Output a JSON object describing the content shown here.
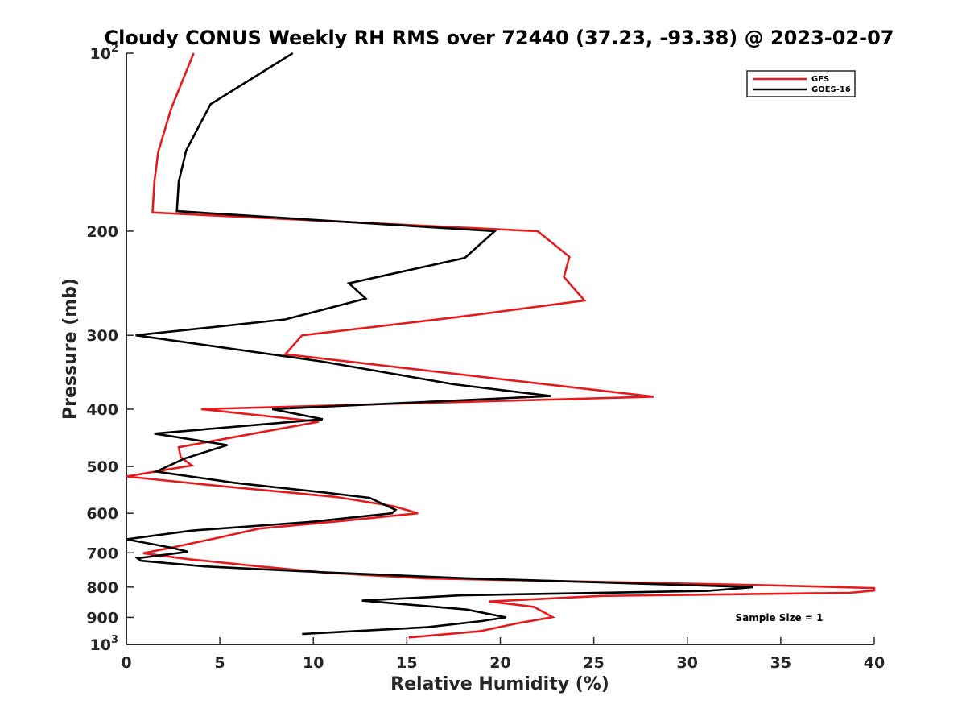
{
  "chart_data": {
    "type": "line",
    "title": "Cloudy CONUS Weekly RH RMS over 72440 (37.23, -93.38) @ 2023-02-07",
    "xlabel": "Relative Humidity (%)",
    "ylabel": "Pressure (mb)",
    "xlim": [
      0,
      40
    ],
    "ylim": [
      100,
      1000
    ],
    "y_scale": "log",
    "y_reversed": true,
    "x_ticks": [
      "0",
      "5",
      "10",
      "15",
      "20",
      "25",
      "30",
      "35",
      "40"
    ],
    "y_ticks": [
      {
        "value": 100,
        "label": "10",
        "exp": "2"
      },
      {
        "value": 200,
        "label": "200",
        "exp": ""
      },
      {
        "value": 300,
        "label": "300",
        "exp": ""
      },
      {
        "value": 400,
        "label": "400",
        "exp": ""
      },
      {
        "value": 500,
        "label": "500",
        "exp": ""
      },
      {
        "value": 600,
        "label": "600",
        "exp": ""
      },
      {
        "value": 700,
        "label": "700",
        "exp": ""
      },
      {
        "value": 800,
        "label": "800",
        "exp": ""
      },
      {
        "value": 900,
        "label": "900",
        "exp": ""
      },
      {
        "value": 1000,
        "label": "10",
        "exp": "3"
      }
    ],
    "grid": false,
    "legend_position": "top-right",
    "annotation": "Sample Size = 1",
    "series": [
      {
        "name": "GFS",
        "color": "#e41a1c",
        "points": [
          [
            3.6,
            100
          ],
          [
            2.4,
            124
          ],
          [
            1.7,
            147
          ],
          [
            1.5,
            165
          ],
          [
            1.4,
            186
          ],
          [
            22.0,
            200
          ],
          [
            23.7,
            221
          ],
          [
            23.4,
            239
          ],
          [
            24.5,
            262
          ],
          [
            17.9,
            279
          ],
          [
            9.4,
            300
          ],
          [
            8.5,
            323
          ],
          [
            28.2,
            381
          ],
          [
            4.0,
            400
          ],
          [
            10.3,
            420
          ],
          [
            2.8,
            464
          ],
          [
            2.9,
            482
          ],
          [
            3.5,
            498
          ],
          [
            0.0,
            520
          ],
          [
            5.1,
            540
          ],
          [
            11.2,
            563
          ],
          [
            14.3,
            584
          ],
          [
            15.6,
            600
          ],
          [
            11.6,
            618
          ],
          [
            7.1,
            637
          ],
          [
            5.0,
            659
          ],
          [
            2.5,
            685
          ],
          [
            0.9,
            701
          ],
          [
            3.4,
            718
          ],
          [
            6.9,
            737
          ],
          [
            10.6,
            756
          ],
          [
            15.9,
            773
          ],
          [
            34.9,
            795
          ],
          [
            40.0,
            803
          ],
          [
            40.0,
            811
          ],
          [
            38.7,
            818
          ],
          [
            25.4,
            828
          ],
          [
            19.4,
            846
          ],
          [
            21.8,
            864
          ],
          [
            22.8,
            899
          ],
          [
            20.9,
            921
          ],
          [
            18.9,
            950
          ],
          [
            15.1,
            973
          ]
        ]
      },
      {
        "name": "GOES-16",
        "color": "#000000",
        "points": [
          [
            8.9,
            100
          ],
          [
            4.5,
            122
          ],
          [
            3.2,
            146
          ],
          [
            2.8,
            165
          ],
          [
            2.7,
            185
          ],
          [
            19.7,
            200
          ],
          [
            18.1,
            222
          ],
          [
            11.9,
            245
          ],
          [
            12.8,
            260
          ],
          [
            8.5,
            282
          ],
          [
            0.5,
            300
          ],
          [
            10.4,
            332
          ],
          [
            17.5,
            363
          ],
          [
            22.7,
            380
          ],
          [
            7.8,
            400
          ],
          [
            10.5,
            416
          ],
          [
            1.5,
            440
          ],
          [
            5.4,
            460
          ],
          [
            3.1,
            485
          ],
          [
            1.6,
            510
          ],
          [
            5.8,
            533
          ],
          [
            10.5,
            553
          ],
          [
            13.0,
            565
          ],
          [
            14.4,
            592
          ],
          [
            14.2,
            600
          ],
          [
            10.0,
            620
          ],
          [
            3.5,
            642
          ],
          [
            0.0,
            664
          ],
          [
            2.4,
            686
          ],
          [
            3.3,
            697
          ],
          [
            0.6,
            715
          ],
          [
            0.8,
            722
          ],
          [
            4.2,
            738
          ],
          [
            10.9,
            756
          ],
          [
            18.2,
            773
          ],
          [
            33.5,
            800
          ],
          [
            31.1,
            812
          ],
          [
            17.9,
            826
          ],
          [
            12.6,
            843
          ],
          [
            18.2,
            873
          ],
          [
            20.3,
            900
          ],
          [
            19.0,
            913
          ],
          [
            16.1,
            935
          ],
          [
            9.4,
            960
          ]
        ]
      }
    ]
  }
}
